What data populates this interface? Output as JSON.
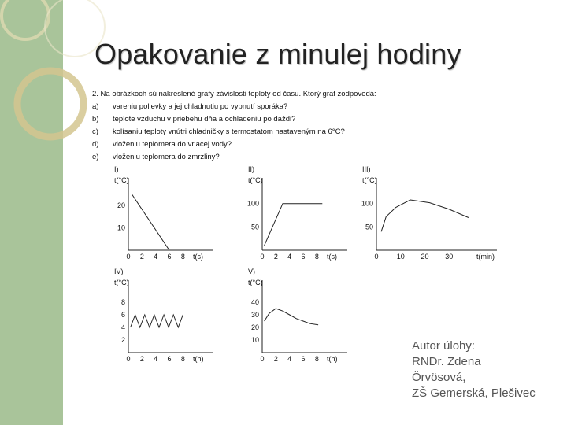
{
  "slide": {
    "title": "Opakovanie z minulej hodiny",
    "author_lines": [
      "Autor úlohy:",
      "RNDr. Zdena",
      "Örvösová,",
      "ZŠ Gemerská, Plešivec"
    ]
  },
  "task": {
    "question": "2. Na obrázkoch sú nakreslené grafy závislosti teploty od času. Ktorý graf zodpovedá:",
    "items": [
      {
        "key": "a)",
        "text": "vareniu polievky a jej chladnutiu po vypnutí sporáka?"
      },
      {
        "key": "b)",
        "text": "teplote vzduchu v priebehu dňa a ochladeniu po daždi?"
      },
      {
        "key": "c)",
        "text": "kolísaniu teploty vnútri chladničky s termostatom nastaveným na 6°C?"
      },
      {
        "key": "d)",
        "text": "vloženiu teplomera do vriacej vody?"
      },
      {
        "key": "e)",
        "text": "vloženiu teplomera do zmrzliny?"
      }
    ]
  },
  "chart_data": [
    {
      "label": "I)",
      "type": "line",
      "ylabel": "t(°C)",
      "xlabel": "t(s)",
      "yticks": [
        20,
        10
      ],
      "xticks": [
        0,
        2,
        4,
        6,
        8
      ],
      "xlim": [
        0,
        9
      ],
      "ylim": [
        0,
        28
      ],
      "x": [
        0.5,
        6,
        8.8
      ],
      "y": [
        25,
        0,
        0
      ]
    },
    {
      "label": "II)",
      "type": "line",
      "ylabel": "t(°C)",
      "xlabel": "t(s)",
      "yticks": [
        100,
        50
      ],
      "xticks": [
        0,
        2,
        4,
        6,
        8
      ],
      "xlim": [
        0,
        9
      ],
      "ylim": [
        0,
        135
      ],
      "x": [
        0.3,
        3,
        8.8
      ],
      "y": [
        10,
        100,
        100
      ]
    },
    {
      "label": "III)",
      "type": "line",
      "ylabel": "t(°C)",
      "xlabel": "t(min)",
      "yticks": [
        100,
        50
      ],
      "xticks": [
        0,
        10,
        20,
        30
      ],
      "xlim": [
        0,
        40
      ],
      "ylim": [
        0,
        135
      ],
      "x": [
        2,
        4,
        8,
        14,
        22,
        30,
        38
      ],
      "y": [
        40,
        72,
        92,
        108,
        102,
        88,
        70
      ]
    },
    {
      "label": "IV)",
      "type": "line",
      "ylabel": "t(°C)",
      "xlabel": "t(h)",
      "yticks": [
        8,
        6,
        4,
        2
      ],
      "xticks": [
        0,
        2,
        4,
        6,
        8
      ],
      "xlim": [
        0,
        9
      ],
      "ylim": [
        0,
        10
      ],
      "x": [
        0.3,
        1,
        1.7,
        2.4,
        3.1,
        3.8,
        4.5,
        5.2,
        5.9,
        6.6,
        7.3,
        8
      ],
      "y": [
        4,
        6,
        4,
        6,
        4,
        6,
        4,
        6,
        4,
        6,
        4,
        6
      ]
    },
    {
      "label": "V)",
      "type": "line",
      "ylabel": "t(°C)",
      "xlabel": "t(h)",
      "yticks": [
        40,
        30,
        20,
        10
      ],
      "xticks": [
        0,
        2,
        4,
        6,
        8
      ],
      "xlim": [
        0,
        9
      ],
      "ylim": [
        0,
        50
      ],
      "x": [
        0.3,
        1,
        2,
        3,
        4,
        5,
        6,
        7,
        8.2
      ],
      "y": [
        25,
        31,
        35,
        33,
        30,
        27,
        25,
        23,
        22
      ]
    }
  ]
}
